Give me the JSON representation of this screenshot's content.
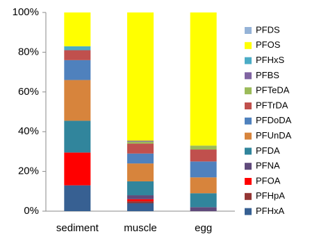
{
  "chart_data": {
    "type": "stacked_bar_100",
    "categories": [
      "sediment",
      "muscle",
      "egg"
    ],
    "series": [
      {
        "name": "PFHxA",
        "color": "#376092",
        "values": [
          13,
          4,
          0
        ]
      },
      {
        "name": "PFHpA",
        "color": "#943634",
        "values": [
          0,
          1,
          0
        ]
      },
      {
        "name": "PFOA",
        "color": "#ff0000",
        "values": [
          16.5,
          1,
          0
        ]
      },
      {
        "name": "PFNA",
        "color": "#604a7b",
        "values": [
          0,
          2,
          2
        ]
      },
      {
        "name": "PFDA",
        "color": "#31859c",
        "values": [
          16,
          7,
          7
        ]
      },
      {
        "name": "PFUnDA",
        "color": "#d7843c",
        "values": [
          20.5,
          9,
          8
        ]
      },
      {
        "name": "PFDoDA",
        "color": "#4f81bd",
        "values": [
          10,
          5,
          8
        ]
      },
      {
        "name": "PFTrDA",
        "color": "#c0504d",
        "values": [
          5,
          5,
          6
        ]
      },
      {
        "name": "PFTeDA",
        "color": "#9bbb59",
        "values": [
          0,
          1,
          2
        ]
      },
      {
        "name": "PFBS",
        "color": "#8064a2",
        "values": [
          0,
          0.5,
          0
        ]
      },
      {
        "name": "PFHxS",
        "color": "#4bacc6",
        "values": [
          2,
          0,
          0
        ]
      },
      {
        "name": "PFOS",
        "color": "#ffff00",
        "values": [
          17,
          64.5,
          67
        ]
      },
      {
        "name": "PFDS",
        "color": "#95b3d7",
        "values": [
          0,
          0,
          0
        ]
      }
    ],
    "ylim": [
      0,
      100
    ],
    "yticks": [
      {
        "value": 0,
        "label": "0%"
      },
      {
        "value": 20,
        "label": "20%"
      },
      {
        "value": 40,
        "label": "40%"
      },
      {
        "value": 60,
        "label": "60%"
      },
      {
        "value": 80,
        "label": "80%"
      },
      {
        "value": 100,
        "label": "100%"
      }
    ],
    "legend": "right"
  }
}
